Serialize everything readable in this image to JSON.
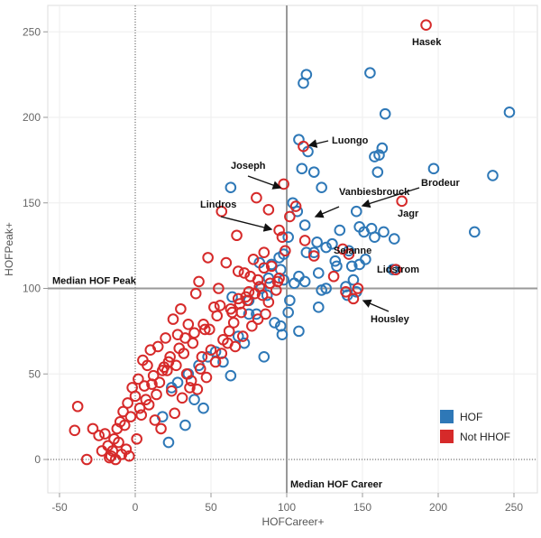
{
  "chart_data": {
    "type": "scatter",
    "xlabel": "HOFCareer+",
    "ylabel": "HOFPeak+",
    "xlim": [
      -55,
      262
    ],
    "ylim": [
      -20,
      262
    ],
    "xticks": [
      -50,
      0,
      50,
      100,
      150,
      200,
      250
    ],
    "yticks": [
      0,
      50,
      100,
      150,
      200,
      250
    ],
    "grid": true,
    "legend_placement": "bottom-right",
    "colors": {
      "HOF": "#2e78b7",
      "Not HHOF": "#d62a2a",
      "reference_line": "#999999"
    },
    "reference_lines": [
      {
        "orientation": "vertical",
        "value": 100,
        "label": "Median HOF Career"
      },
      {
        "orientation": "horizontal",
        "value": 100,
        "label": "Median HOF Peak"
      }
    ],
    "series": [
      {
        "name": "HOF",
        "x": [
          111,
          113,
          155,
          165,
          247,
          197,
          236,
          224,
          108,
          114,
          158,
          161,
          163,
          160,
          63,
          98,
          104,
          110,
          107,
          118,
          123,
          146,
          148,
          151,
          156,
          164,
          171,
          172,
          112,
          130,
          135,
          152,
          141,
          148,
          158,
          170,
          120,
          126,
          101,
          113,
          133,
          144,
          95,
          118,
          143,
          96,
          105,
          126,
          140,
          108,
          121,
          132,
          139,
          146,
          82,
          90,
          98,
          88,
          112,
          123,
          87,
          83,
          102,
          101,
          92,
          75,
          80,
          64,
          97,
          121,
          96,
          108,
          75,
          85,
          63,
          72,
          68,
          53,
          42,
          48,
          35,
          58,
          28,
          39,
          24,
          45,
          18,
          33,
          22
        ],
        "y": [
          220,
          225,
          226,
          202,
          203,
          170,
          166,
          133,
          187,
          180,
          177,
          178,
          182,
          168,
          159,
          105,
          150,
          170,
          145,
          168,
          159,
          145,
          136,
          133,
          135,
          133,
          129,
          111,
          137,
          126,
          134,
          117,
          122,
          114,
          130,
          111,
          127,
          124,
          130,
          121,
          113,
          105,
          118,
          121,
          113,
          111,
          103,
          100,
          96,
          107,
          109,
          116,
          101,
          98,
          115,
          114,
          120,
          106,
          104,
          99,
          96,
          100,
          93,
          86,
          80,
          93,
          85,
          95,
          73,
          89,
          78,
          75,
          85,
          60,
          49,
          68,
          72,
          63,
          55,
          60,
          50,
          57,
          45,
          35,
          42,
          30,
          25,
          20,
          10
        ]
      },
      {
        "name": "Not HHOF",
        "x": [
          192,
          98,
          111,
          106,
          102,
          80,
          57,
          88,
          95,
          97,
          137,
          176,
          141,
          172,
          131,
          147,
          139,
          144,
          112,
          118,
          99,
          67,
          85,
          78,
          90,
          94,
          72,
          60,
          48,
          82,
          75,
          68,
          88,
          70,
          52,
          65,
          42,
          40,
          55,
          30,
          25,
          62,
          58,
          46,
          35,
          38,
          50,
          28,
          20,
          32,
          44,
          15,
          22,
          10,
          18,
          5,
          12,
          8,
          2,
          -2,
          0,
          -5,
          -8,
          -10,
          -12,
          -14,
          -15,
          -16,
          -18,
          -20,
          -11,
          -7,
          -3,
          3,
          7,
          6,
          14,
          16,
          24,
          21,
          27,
          34,
          37,
          41,
          4,
          9,
          13,
          17,
          1,
          -6,
          -4,
          -9,
          -13,
          -17,
          -22,
          -24,
          -28,
          -40,
          -38,
          -32,
          26,
          31,
          36,
          43,
          47,
          53,
          57,
          61,
          66,
          71,
          77,
          81,
          86,
          23,
          29,
          19,
          11,
          33,
          39,
          45,
          49,
          54,
          63,
          69,
          74,
          79,
          84,
          89,
          93,
          56,
          64,
          73,
          68,
          76,
          85,
          95,
          81
        ],
        "y": [
          254,
          161,
          183,
          148,
          142,
          153,
          145,
          146,
          134,
          130,
          123,
          151,
          120,
          111,
          107,
          100,
          98,
          94,
          128,
          119,
          122,
          131,
          121,
          117,
          113,
          104,
          109,
          115,
          118,
          101,
          98,
          94,
          92,
          86,
          89,
          80,
          104,
          97,
          100,
          88,
          82,
          75,
          70,
          76,
          79,
          68,
          64,
          73,
          71,
          62,
          60,
          66,
          57,
          64,
          52,
          58,
          49,
          55,
          47,
          42,
          37,
          33,
          28,
          22,
          18,
          12,
          5,
          2,
          8,
          15,
          10,
          20,
          25,
          30,
          35,
          43,
          38,
          45,
          40,
          52,
          55,
          50,
          46,
          41,
          26,
          32,
          23,
          18,
          12,
          6,
          2,
          3,
          0,
          1,
          5,
          14,
          18,
          17,
          31,
          0,
          27,
          36,
          42,
          53,
          48,
          57,
          62,
          68,
          66,
          72,
          78,
          82,
          85,
          60,
          65,
          54,
          44,
          71,
          74,
          79,
          76,
          84,
          88,
          91,
          93,
          97,
          96,
          103,
          99,
          90,
          86,
          95,
          110,
          107,
          112,
          106,
          105
        ]
      }
    ],
    "annotations": [
      {
        "text": "Hasek",
        "x": 192,
        "y": 254
      },
      {
        "text": "Luongo",
        "x": 111,
        "y": 183
      },
      {
        "text": "Joseph",
        "x": 98,
        "y": 161
      },
      {
        "text": "Vanbiesbrouck",
        "x": 137,
        "y": 142
      },
      {
        "text": "Brodeur",
        "x": 147,
        "y": 150
      },
      {
        "text": "Lindros",
        "x": 91,
        "y": 137
      },
      {
        "text": "Jagr",
        "x": 165,
        "y": 144
      },
      {
        "text": "Selanne",
        "x": 128,
        "y": 120
      },
      {
        "text": "Lidstrom",
        "x": 160,
        "y": 110
      },
      {
        "text": "Housley",
        "x": 148,
        "y": 94
      }
    ]
  }
}
